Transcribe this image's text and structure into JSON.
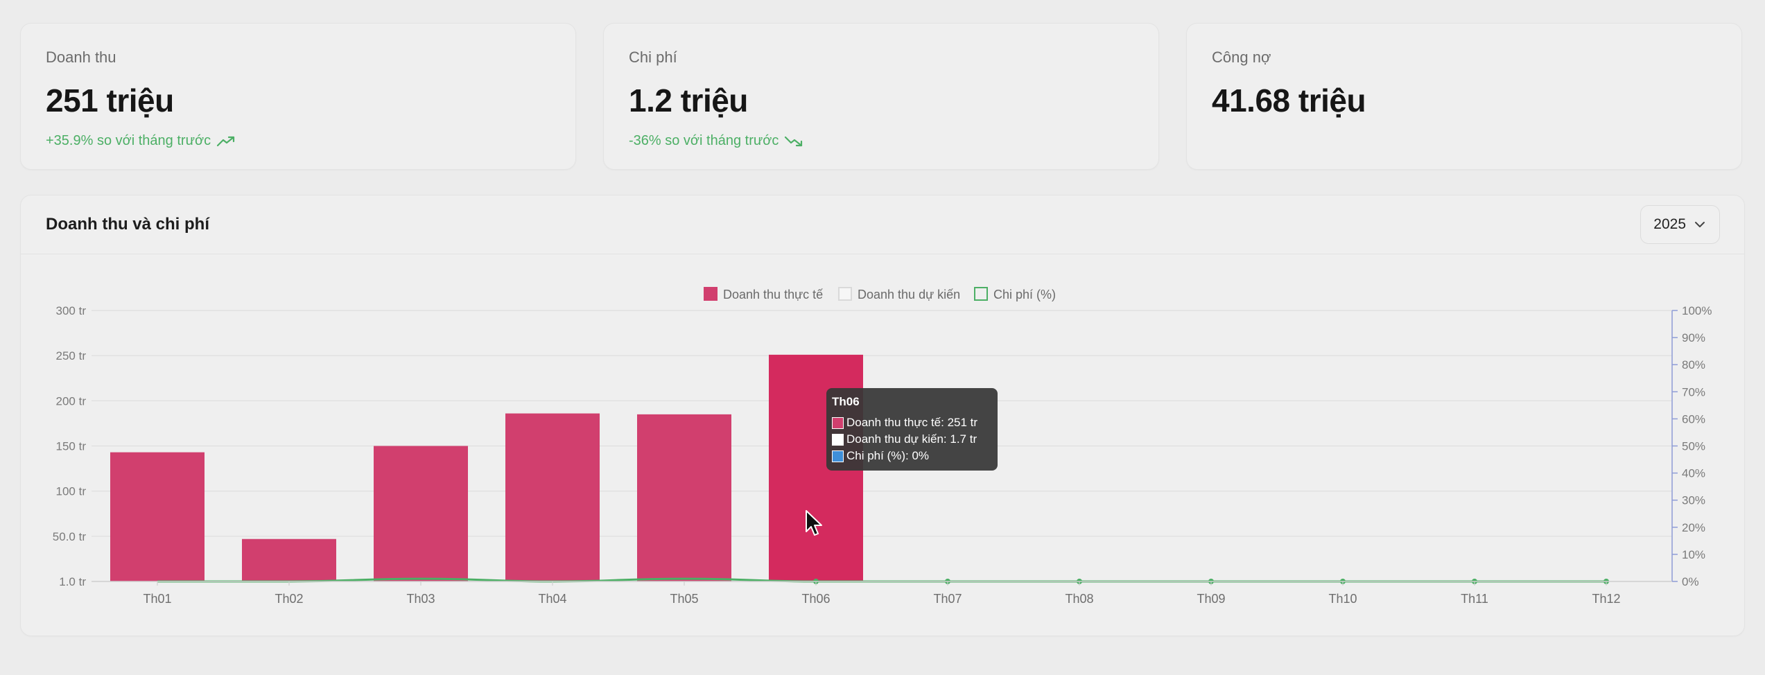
{
  "stats": [
    {
      "label": "Doanh thu",
      "value": "251 triệu",
      "change": "+35.9% so với tháng trước",
      "trend": "up-trend-icon"
    },
    {
      "label": "Chi phí",
      "value": "1.2 triệu",
      "change": "-36% so với tháng trước",
      "trend": "down-trend-icon"
    },
    {
      "label": "Công nợ",
      "value": "41.68 triệu",
      "change": ""
    }
  ],
  "chart_panel": {
    "title": "Doanh thu và chi phí",
    "year": "2025"
  },
  "colors": {
    "bar": "#d13f6e",
    "bar_active": "#d42a5e",
    "line": "#4caf65",
    "right_axis": "#8e9cd6",
    "tooltip_bg": "#373737"
  },
  "chart_data": {
    "type": "bar",
    "categories": [
      "Th01",
      "Th02",
      "Th03",
      "Th04",
      "Th05",
      "Th06",
      "Th07",
      "Th08",
      "Th09",
      "Th10",
      "Th11",
      "Th12"
    ],
    "series": [
      {
        "name": "Doanh thu thực tế",
        "type": "bar",
        "values": [
          143,
          47,
          150,
          186,
          185,
          251,
          0,
          0,
          0,
          0,
          0,
          0
        ]
      },
      {
        "name": "Doanh thu dự kiến",
        "type": "bar",
        "values": [
          null,
          null,
          null,
          null,
          null,
          1.7,
          null,
          null,
          null,
          null,
          null,
          null
        ]
      },
      {
        "name": "Chi phí (%)",
        "type": "line",
        "axis": "right",
        "values": [
          0,
          0,
          1,
          0,
          1,
          0,
          0,
          0,
          0,
          0,
          0,
          0
        ]
      }
    ],
    "y_left": {
      "ticks": [
        "1.0 tr",
        "50.0 tr",
        "100 tr",
        "150 tr",
        "200 tr",
        "250 tr",
        "300 tr"
      ],
      "range": [
        0,
        300
      ]
    },
    "y_right": {
      "ticks": [
        "0%",
        "10%",
        "20%",
        "30%",
        "40%",
        "50%",
        "60%",
        "70%",
        "80%",
        "90%",
        "100%"
      ],
      "range": [
        0,
        100
      ]
    },
    "legend": [
      "Doanh thu thực tế",
      "Doanh thu dự kiến",
      "Chi phí (%)"
    ],
    "legend_position": "top-center",
    "grid": true,
    "active_index": 5
  },
  "tooltip": {
    "title": "Th06",
    "rows": [
      {
        "text": "Doanh thu thực tế: 251 tr",
        "color": "#d13f6e"
      },
      {
        "text": "Doanh thu dự kiến: 1.7 tr",
        "color": "#ffffff"
      },
      {
        "text": "Chi phí (%): 0%",
        "color": "#3f8fd8"
      }
    ]
  }
}
